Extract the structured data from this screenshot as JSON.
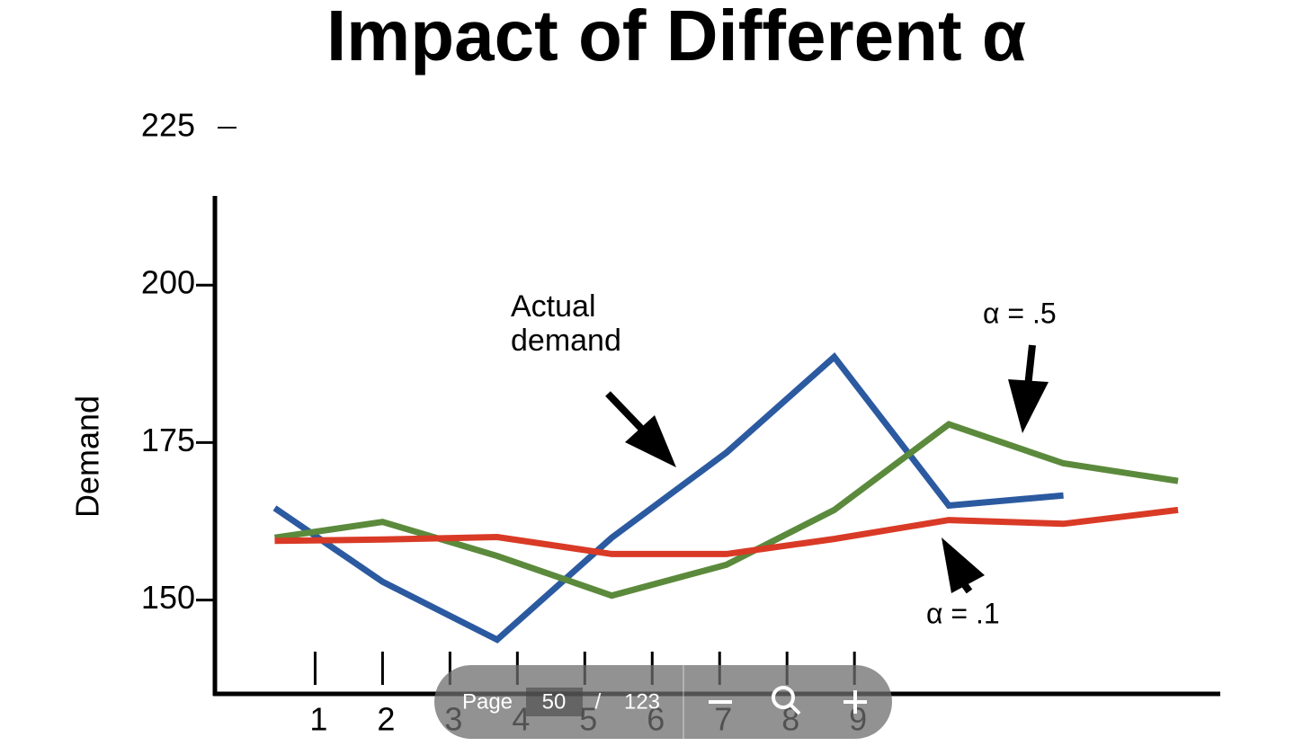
{
  "chart_data": {
    "type": "line",
    "title": "Impact of Different α",
    "y_label": "Demand",
    "x": [
      0.4,
      2.0,
      3.7,
      5.4,
      7.1,
      8.7,
      10.4,
      12.1,
      13.8
    ],
    "series": [
      {
        "color": "#2b5aa0",
        "values": [
          164.6,
          152.9,
          143.7,
          159.9,
          173.4,
          188.6,
          165.0,
          166.6,
          null
        ]
      },
      {
        "color": "#5b8a3c",
        "values": [
          159.9,
          162.4,
          157.0,
          150.7,
          155.6,
          164.3,
          177.9,
          171.7,
          168.9
        ]
      },
      {
        "color": "#d93a26",
        "values": [
          159.4,
          159.6,
          160.0,
          157.3,
          157.3,
          159.7,
          162.7,
          162.1,
          164.3
        ]
      }
    ],
    "xlim": [
      -0.5,
      14.4
    ],
    "ylim": [
      135.1,
      225
    ],
    "xticks": [
      1,
      2,
      3,
      4,
      5,
      6,
      7,
      8,
      9
    ],
    "yticks": [
      150,
      175,
      200,
      225
    ],
    "annotations": [
      {
        "lines": [
          "Actual",
          "demand"
        ]
      },
      {
        "text": "α = .5"
      },
      {
        "text": "α = .1"
      }
    ]
  },
  "toolbar": {
    "page_label": "Page",
    "page": 50,
    "separator": "/",
    "total": 123
  }
}
